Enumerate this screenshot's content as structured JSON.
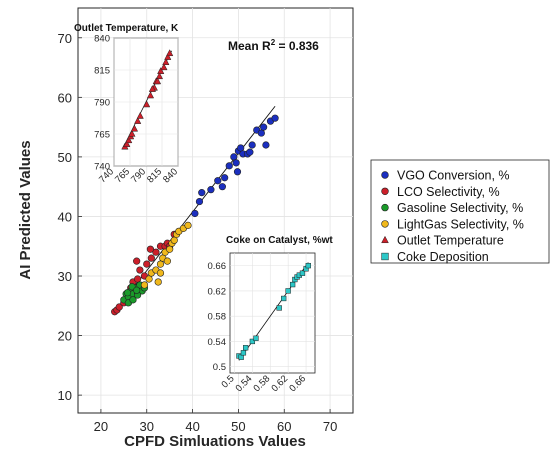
{
  "chart_data": [
    {
      "type": "scatter",
      "xlabel": "CPFD Simluations Values",
      "ylabel": "AI Predicted Values",
      "xlim": [
        15,
        75
      ],
      "ylim": [
        7,
        75
      ],
      "xticks": [
        20,
        30,
        40,
        50,
        60,
        70
      ],
      "yticks": [
        10,
        20,
        30,
        40,
        50,
        60,
        70
      ],
      "grid": true,
      "annotation": {
        "prefix": "Mean R",
        "superscript": "2",
        "suffix": " = 0.836"
      },
      "fit_line": [
        [
          23,
          24
        ],
        [
          58,
          58.5
        ]
      ],
      "legend_position": "outside-right",
      "series": [
        {
          "name": "VGO Conversion, %",
          "color": "#1b2fbf",
          "marker": "circle",
          "points": [
            [
              40.5,
              40.5
            ],
            [
              41.5,
              42.5
            ],
            [
              42,
              44
            ],
            [
              44,
              44.5
            ],
            [
              45.5,
              46
            ],
            [
              46.5,
              45
            ],
            [
              47,
              46.5
            ],
            [
              48,
              48.5
            ],
            [
              49,
              50
            ],
            [
              49.5,
              49
            ],
            [
              50,
              51
            ],
            [
              50.5,
              51.5
            ],
            [
              51,
              50.5
            ],
            [
              52,
              50.5
            ],
            [
              53,
              52
            ],
            [
              54,
              54.5
            ],
            [
              55,
              54
            ],
            [
              55.5,
              55
            ],
            [
              56,
              52
            ],
            [
              57,
              56
            ],
            [
              58,
              56.5
            ],
            [
              49.8,
              47.5
            ],
            [
              52.5,
              50.8
            ]
          ]
        },
        {
          "name": "LCO Selectivity, %",
          "color": "#cc1f2a",
          "marker": "circle",
          "points": [
            [
              23,
              24
            ],
            [
              23.5,
              24.3
            ],
            [
              24,
              24.8
            ],
            [
              25,
              25.5
            ],
            [
              25.5,
              26
            ],
            [
              26,
              27
            ],
            [
              26.5,
              28
            ],
            [
              27,
              29
            ],
            [
              28,
              29.5
            ],
            [
              28.5,
              31
            ],
            [
              29.5,
              30
            ],
            [
              30,
              32
            ],
            [
              31,
              33
            ],
            [
              32,
              34
            ],
            [
              33,
              35
            ],
            [
              34,
              35
            ],
            [
              34.5,
              35.5
            ],
            [
              35,
              35
            ],
            [
              36,
              37
            ],
            [
              30.8,
              34.5
            ],
            [
              27.8,
              32.5
            ]
          ]
        },
        {
          "name": "Gasoline Selectivity, %",
          "color": "#1a9a2a",
          "marker": "circle",
          "points": [
            [
              25,
              26
            ],
            [
              25.5,
              27
            ],
            [
              26,
              26.5
            ],
            [
              26.5,
              27.5
            ],
            [
              27,
              27
            ],
            [
              27.5,
              28
            ],
            [
              28,
              27
            ],
            [
              28.5,
              28.5
            ],
            [
              29,
              27.5
            ],
            [
              26,
              25.5
            ],
            [
              27,
              26
            ],
            [
              28,
              26.8
            ],
            [
              26.8,
              28.2
            ],
            [
              27.8,
              27.6
            ],
            [
              25.8,
              27.2
            ],
            [
              29.5,
              28
            ]
          ]
        },
        {
          "name": "LightGas Selectivity, %",
          "color": "#f0b81c",
          "marker": "circle",
          "points": [
            [
              29.5,
              28.5
            ],
            [
              30.5,
              29.5
            ],
            [
              31,
              30.5
            ],
            [
              32,
              31
            ],
            [
              33,
              32
            ],
            [
              33.5,
              33
            ],
            [
              34,
              34
            ],
            [
              35,
              34.5
            ],
            [
              35.5,
              35.5
            ],
            [
              36,
              36
            ],
            [
              36.5,
              37
            ],
            [
              37,
              37.5
            ],
            [
              38,
              38
            ],
            [
              39,
              38.5
            ],
            [
              33,
              30.5
            ],
            [
              32.5,
              29
            ],
            [
              34.5,
              32.5
            ]
          ]
        },
        {
          "name": "Outlet Temperature",
          "color": "#cc1f2a",
          "marker": "triangle"
        },
        {
          "name": "Coke Deposition",
          "color": "#2cc7c7",
          "marker": "square"
        }
      ]
    },
    {
      "type": "scatter",
      "title": "Outlet Temperature, K",
      "xlim": [
        740,
        840
      ],
      "ylim": [
        740,
        840
      ],
      "ticks": [
        740,
        765,
        790,
        815,
        840
      ],
      "grid": true,
      "fit_line": [
        [
          755,
          755
        ],
        [
          830,
          830
        ]
      ],
      "marker": "triangle",
      "color": "#cc1f2a",
      "points": [
        [
          757,
          755
        ],
        [
          760,
          757
        ],
        [
          763,
          760
        ],
        [
          766,
          763
        ],
        [
          768,
          765
        ],
        [
          772,
          769
        ],
        [
          777,
          775
        ],
        [
          781,
          779
        ],
        [
          791,
          788
        ],
        [
          797,
          795
        ],
        [
          803,
          801
        ],
        [
          806,
          806
        ],
        [
          811,
          810
        ],
        [
          813,
          814
        ],
        [
          818,
          817
        ],
        [
          821,
          821
        ],
        [
          824,
          825
        ],
        [
          827,
          828
        ],
        [
          808,
          806
        ],
        [
          800,
          800
        ]
      ]
    },
    {
      "type": "scatter",
      "title": "Coke on Catalyst, %wt",
      "xlim": [
        0.49,
        0.68
      ],
      "ylim": [
        0.49,
        0.68
      ],
      "ticks": [
        0.5,
        0.54,
        0.58,
        0.62,
        0.66
      ],
      "grid": true,
      "fit_line": [
        [
          0.51,
          0.51
        ],
        [
          0.665,
          0.665
        ]
      ],
      "marker": "square",
      "color": "#2cc7c7",
      "points": [
        [
          0.51,
          0.517
        ],
        [
          0.515,
          0.515
        ],
        [
          0.52,
          0.522
        ],
        [
          0.525,
          0.53
        ],
        [
          0.54,
          0.54
        ],
        [
          0.548,
          0.545
        ],
        [
          0.6,
          0.593
        ],
        [
          0.61,
          0.608
        ],
        [
          0.62,
          0.62
        ],
        [
          0.63,
          0.63
        ],
        [
          0.635,
          0.638
        ],
        [
          0.64,
          0.642
        ],
        [
          0.645,
          0.645
        ],
        [
          0.652,
          0.648
        ],
        [
          0.66,
          0.655
        ],
        [
          0.665,
          0.66
        ]
      ]
    }
  ]
}
